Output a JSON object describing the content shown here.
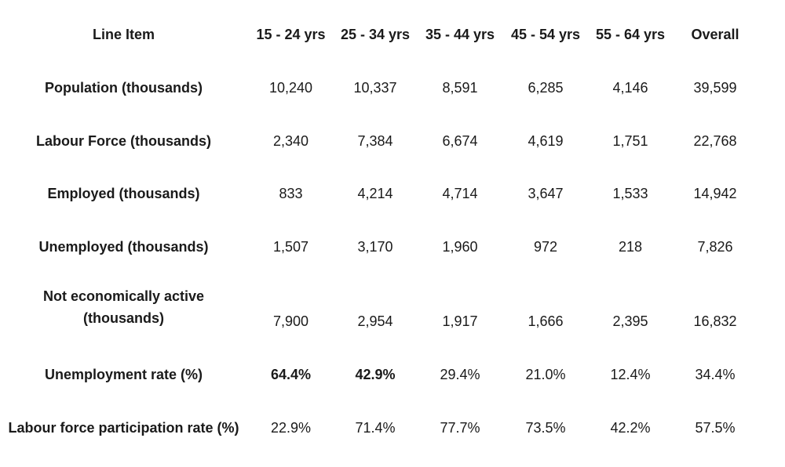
{
  "table": {
    "headers": [
      "Line Item",
      "15 - 24 yrs",
      "25 - 34 yrs",
      "35 - 44 yrs",
      "45 - 54 yrs",
      "55 - 64 yrs",
      "Overall"
    ],
    "rows": [
      {
        "label": "Population (thousands)",
        "values": [
          "10,240",
          "10,337",
          "8,591",
          "6,285",
          "4,146",
          "39,599"
        ]
      },
      {
        "label": "Labour Force (thousands)",
        "values": [
          "2,340",
          "7,384",
          "6,674",
          "4,619",
          "1,751",
          "22,768"
        ]
      },
      {
        "label": "Employed (thousands)",
        "values": [
          "833",
          "4,214",
          "4,714",
          "3,647",
          "1,533",
          "14,942"
        ]
      },
      {
        "label": "Unemployed (thousands)",
        "values": [
          "1,507",
          "3,170",
          "1,960",
          "972",
          "218",
          "7,826"
        ]
      },
      {
        "label_line1": "Not economically active",
        "label_line2": "(thousands)",
        "values": [
          "7,900",
          "2,954",
          "1,917",
          "1,666",
          "2,395",
          "16,832"
        ]
      },
      {
        "label": "Unemployment rate (%)",
        "values": [
          "64.4%",
          "42.9%",
          "29.4%",
          "21.0%",
          "12.4%",
          "34.4%"
        ]
      },
      {
        "label": "Labour force participation rate (%)",
        "values": [
          "22.9%",
          "71.4%",
          "77.7%",
          "73.5%",
          "42.2%",
          "57.5%"
        ]
      }
    ]
  }
}
